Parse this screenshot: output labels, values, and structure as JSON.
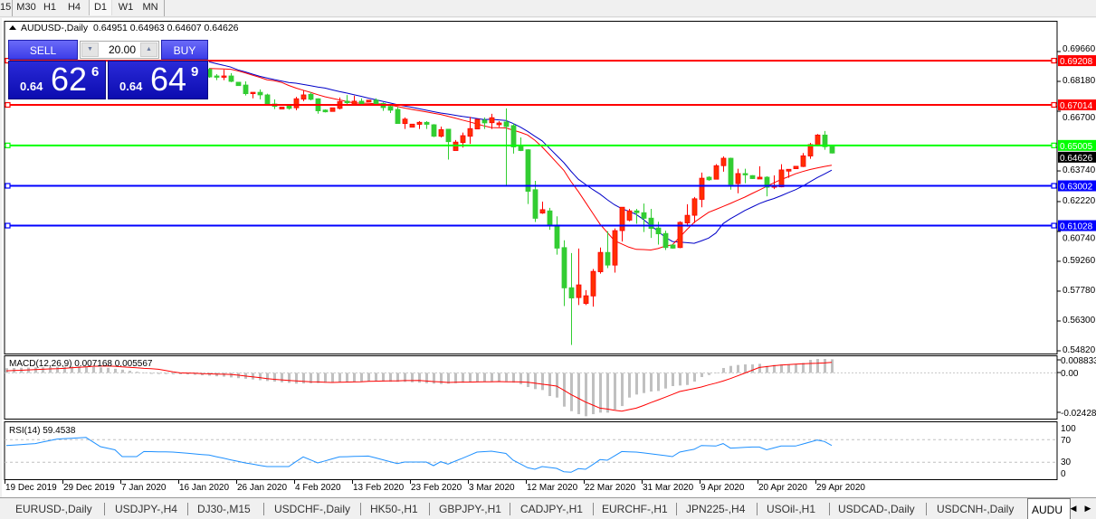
{
  "toolbar": {
    "timeframes": [
      "15",
      "M30",
      "H1",
      "H4",
      "D1",
      "W1",
      "MN"
    ],
    "active": "D1"
  },
  "chart": {
    "symbol_label": "AUDUSD-,Daily",
    "ohlc_text": "0.64951 0.64963 0.64607 0.64626",
    "colors": {
      "bull": "#ff3000",
      "bear": "#32cd32",
      "ma_fast": "#ff0000",
      "ma_slow": "#0000c8",
      "grid_text": "#000000"
    },
    "price_axis": [
      "0.69660",
      "0.68180",
      "0.66700",
      "0.63740",
      "0.62220",
      "0.60740",
      "0.59260",
      "0.57780",
      "0.56300",
      "0.54820"
    ],
    "price_range": [
      0.5482,
      0.6966
    ],
    "levels": [
      {
        "price": "0.69208",
        "color": "#ff0000"
      },
      {
        "price": "0.67014",
        "color": "#ff0000"
      },
      {
        "price": "0.65005",
        "color": "#00ff00"
      },
      {
        "price": "0.63002",
        "color": "#0000ff"
      },
      {
        "price": "0.61028",
        "color": "#0000ff"
      }
    ],
    "current_price": "0.64626",
    "candles": [
      [
        0.6878,
        0.6885,
        0.6836,
        0.684
      ],
      [
        0.6845,
        0.6854,
        0.6824,
        0.6839
      ],
      [
        0.684,
        0.6876,
        0.6824,
        0.6845
      ],
      [
        0.6845,
        0.6859,
        0.6814,
        0.6818
      ],
      [
        0.6814,
        0.6814,
        0.6796,
        0.6797
      ],
      [
        0.68,
        0.6818,
        0.6748,
        0.6757
      ],
      [
        0.6757,
        0.6764,
        0.6734,
        0.6764
      ],
      [
        0.6764,
        0.6778,
        0.6729,
        0.6751
      ],
      [
        0.6751,
        0.6757,
        0.6699,
        0.6702
      ],
      [
        0.6706,
        0.6729,
        0.6681,
        0.6694
      ],
      [
        0.6681,
        0.6691,
        0.6681,
        0.6691
      ],
      [
        0.6696,
        0.6705,
        0.6678,
        0.6684
      ],
      [
        0.6687,
        0.6741,
        0.6675,
        0.6732
      ],
      [
        0.673,
        0.6773,
        0.672,
        0.6751
      ],
      [
        0.6754,
        0.6764,
        0.6724,
        0.6729
      ],
      [
        0.6732,
        0.6734,
        0.6658,
        0.6672
      ],
      [
        0.6676,
        0.6679,
        0.6664,
        0.6667
      ],
      [
        0.6669,
        0.6687,
        0.6669,
        0.6687
      ],
      [
        0.6684,
        0.6738,
        0.6679,
        0.6718
      ],
      [
        0.672,
        0.675,
        0.6703,
        0.6712
      ],
      [
        0.6705,
        0.6747,
        0.6705,
        0.672
      ],
      [
        0.672,
        0.6734,
        0.6705,
        0.6705
      ],
      [
        0.6716,
        0.6726,
        0.6715,
        0.6725
      ],
      [
        0.6725,
        0.6734,
        0.6697,
        0.6705
      ],
      [
        0.6709,
        0.6714,
        0.6672,
        0.6688
      ],
      [
        0.6694,
        0.6706,
        0.6661,
        0.6675
      ],
      [
        0.6679,
        0.669,
        0.6609,
        0.6609
      ],
      [
        0.6609,
        0.6639,
        0.6582,
        0.6631
      ],
      [
        0.6591,
        0.6607,
        0.659,
        0.6606
      ],
      [
        0.6605,
        0.6621,
        0.6582,
        0.6615
      ],
      [
        0.6615,
        0.6621,
        0.6582,
        0.6605
      ],
      [
        0.6603,
        0.6606,
        0.6542,
        0.6546
      ],
      [
        0.6546,
        0.6594,
        0.654,
        0.6579
      ],
      [
        0.6581,
        0.6581,
        0.643,
        0.6519
      ],
      [
        0.6475,
        0.6527,
        0.6475,
        0.6517
      ],
      [
        0.6515,
        0.6564,
        0.649,
        0.6549
      ],
      [
        0.6546,
        0.6642,
        0.6508,
        0.6584
      ],
      [
        0.6582,
        0.6631,
        0.6581,
        0.663
      ],
      [
        0.6626,
        0.6639,
        0.6582,
        0.6612
      ],
      [
        0.6613,
        0.6657,
        0.6582,
        0.6638
      ],
      [
        0.6603,
        0.6621,
        0.6591,
        0.6612
      ],
      [
        0.6617,
        0.6684,
        0.6303,
        0.6594
      ],
      [
        0.6599,
        0.6609,
        0.646,
        0.6493
      ],
      [
        0.6496,
        0.654,
        0.6472,
        0.6475
      ],
      [
        0.6479,
        0.6482,
        0.621,
        0.6273
      ],
      [
        0.6281,
        0.6325,
        0.6121,
        0.6139
      ],
      [
        0.6165,
        0.6222,
        0.6161,
        0.6182
      ],
      [
        0.6176,
        0.6191,
        0.6082,
        0.6105
      ],
      [
        0.6106,
        0.6149,
        0.5959,
        0.5991
      ],
      [
        0.5994,
        0.603,
        0.5704,
        0.5794
      ],
      [
        0.5795,
        0.5967,
        0.5511,
        0.5744
      ],
      [
        0.5746,
        0.5989,
        0.5709,
        0.5809
      ],
      [
        0.5717,
        0.5783,
        0.5709,
        0.5755
      ],
      [
        0.5754,
        0.5888,
        0.5701,
        0.5876
      ],
      [
        0.5874,
        0.5994,
        0.5865,
        0.597
      ],
      [
        0.597,
        0.6075,
        0.5892,
        0.5907
      ],
      [
        0.5907,
        0.6089,
        0.587,
        0.6078
      ],
      [
        0.6078,
        0.6194,
        0.6024,
        0.6194
      ],
      [
        0.613,
        0.6186,
        0.6124,
        0.6176
      ],
      [
        0.6176,
        0.6186,
        0.6112,
        0.6167
      ],
      [
        0.6167,
        0.6212,
        0.6071,
        0.6139
      ],
      [
        0.614,
        0.6186,
        0.6042,
        0.6089
      ],
      [
        0.6091,
        0.6122,
        0.6009,
        0.6062
      ],
      [
        0.6064,
        0.6078,
        0.5982,
        0.5994
      ],
      [
        0.6007,
        0.601,
        0.5988,
        0.5991
      ],
      [
        0.5994,
        0.6124,
        0.5991,
        0.6119
      ],
      [
        0.6116,
        0.6209,
        0.6098,
        0.6154
      ],
      [
        0.6154,
        0.6245,
        0.6116,
        0.6236
      ],
      [
        0.6233,
        0.6366,
        0.6194,
        0.6338
      ],
      [
        0.6343,
        0.6348,
        0.6325,
        0.633
      ],
      [
        0.6333,
        0.6408,
        0.6333,
        0.64
      ],
      [
        0.64,
        0.6446,
        0.637,
        0.6437
      ],
      [
        0.6437,
        0.644,
        0.6281,
        0.6307
      ],
      [
        0.6311,
        0.6385,
        0.6263,
        0.6361
      ],
      [
        0.6361,
        0.6385,
        0.6313,
        0.6355
      ],
      [
        0.6351,
        0.6353,
        0.6334,
        0.6336
      ],
      [
        0.6334,
        0.6397,
        0.6334,
        0.6343
      ],
      [
        0.6343,
        0.6348,
        0.6248,
        0.6293
      ],
      [
        0.6293,
        0.6352,
        0.6284,
        0.6303
      ],
      [
        0.6295,
        0.6407,
        0.6293,
        0.6379
      ],
      [
        0.6373,
        0.6382,
        0.634,
        0.6382
      ],
      [
        0.6385,
        0.6398,
        0.6384,
        0.6397
      ],
      [
        0.6396,
        0.6463,
        0.6393,
        0.6449
      ],
      [
        0.6448,
        0.6513,
        0.6434,
        0.6505
      ],
      [
        0.6501,
        0.6557,
        0.6497,
        0.6552
      ],
      [
        0.6552,
        0.6572,
        0.6479,
        0.6494
      ],
      [
        0.64951,
        0.64963,
        0.64607,
        0.64626
      ]
    ],
    "ma_fast": [
      0.6882,
      0.6881,
      0.688,
      0.6878,
      0.687,
      0.686,
      0.6849,
      0.6838,
      0.6826,
      0.6821,
      0.6813,
      0.6798,
      0.6785,
      0.6774,
      0.6764,
      0.6752,
      0.6742,
      0.6734,
      0.6726,
      0.6719,
      0.6711,
      0.671,
      0.6709,
      0.6707,
      0.6706,
      0.6701,
      0.6694,
      0.6686,
      0.6679,
      0.6673,
      0.6667,
      0.666,
      0.6654,
      0.6645,
      0.6636,
      0.6626,
      0.6617,
      0.6607,
      0.6597,
      0.6589,
      0.6588,
      0.6587,
      0.6576,
      0.6565,
      0.6552,
      0.6526,
      0.6493,
      0.6455,
      0.6416,
      0.6377,
      0.6321,
      0.6272,
      0.6218,
      0.6164,
      0.611,
      0.6069,
      0.6028,
      0.6012,
      0.5996,
      0.5985,
      0.5984,
      0.5982,
      0.5989,
      0.6001,
      0.6008,
      0.6045,
      0.6083,
      0.6119,
      0.6144,
      0.6169,
      0.6183,
      0.6198,
      0.6213,
      0.6229,
      0.6244,
      0.6262,
      0.6279,
      0.6297,
      0.6315,
      0.6331,
      0.6345,
      0.636,
      0.6371,
      0.6381,
      0.6389,
      0.6396,
      0.6402
    ],
    "ma_slow": [
      0.6915,
      0.6906,
      0.6898,
      0.6889,
      0.6875,
      0.6865,
      0.6854,
      0.6843,
      0.6835,
      0.6827,
      0.682,
      0.6812,
      0.6809,
      0.6803,
      0.6797,
      0.679,
      0.6785,
      0.6776,
      0.6768,
      0.676,
      0.6752,
      0.6744,
      0.6735,
      0.6727,
      0.6719,
      0.6711,
      0.6703,
      0.6696,
      0.669,
      0.6682,
      0.6675,
      0.6668,
      0.6661,
      0.6656,
      0.665,
      0.6644,
      0.6639,
      0.6634,
      0.6629,
      0.663,
      0.6627,
      0.6624,
      0.6609,
      0.6591,
      0.657,
      0.6546,
      0.6523,
      0.6487,
      0.6451,
      0.6415,
      0.6372,
      0.6333,
      0.6307,
      0.6282,
      0.6259,
      0.6231,
      0.6206,
      0.6187,
      0.6174,
      0.6158,
      0.6133,
      0.6104,
      0.6075,
      0.6045,
      0.6024,
      0.6021,
      0.6018,
      0.6015,
      0.6027,
      0.6041,
      0.6066,
      0.6113,
      0.6137,
      0.6157,
      0.6178,
      0.6195,
      0.6212,
      0.6226,
      0.6237,
      0.6251,
      0.6266,
      0.6281,
      0.6299,
      0.632,
      0.6341,
      0.6359,
      0.6378
    ]
  },
  "trade_panel": {
    "sell_label": "SELL",
    "buy_label": "BUY",
    "lot": "20.00",
    "sell": {
      "prefix": "0.64",
      "big": "62",
      "sup": "6"
    },
    "buy": {
      "prefix": "0.64",
      "big": "64",
      "sup": "9"
    }
  },
  "macd": {
    "label": "MACD(12,26,9) 0.007168 0.005567",
    "axis": [
      "0.008833",
      "0.00",
      "-0.024281"
    ],
    "range": [
      -0.024281,
      0.008833
    ],
    "main": [
      0.0025,
      0.0026,
      0.0027,
      0.0028,
      0.0029,
      0.003,
      0.0031,
      0.0032,
      0.0033,
      0.0034,
      0.0035,
      0.0033,
      0.0031,
      0.0029,
      0.0027,
      0.0022,
      0.0017,
      0.0011,
      0.0006,
      0.0,
      -0.0005,
      -0.0006,
      -0.0006,
      -0.0007,
      -0.0007,
      -0.0008,
      -0.001,
      -0.0013,
      -0.0015,
      -0.0018,
      -0.002,
      -0.0024,
      -0.0028,
      -0.0031,
      -0.0035,
      -0.0039,
      -0.0043,
      -0.0046,
      -0.005,
      -0.0053,
      -0.0057,
      -0.0056,
      -0.0055,
      -0.0054,
      -0.0052,
      -0.0051,
      -0.005,
      -0.0049,
      -0.0047,
      -0.0046,
      -0.0045,
      -0.0046,
      -0.0046,
      -0.0047,
      -0.0047,
      -0.0048,
      -0.005,
      -0.0052,
      -0.0055,
      -0.0057,
      -0.0059,
      -0.0057,
      -0.0055,
      -0.0052,
      -0.005,
      -0.0048,
      -0.0047,
      -0.0046,
      -0.0046,
      -0.0045,
      -0.0052,
      -0.006,
      -0.0075,
      -0.0086,
      -0.0091,
      -0.0123,
      -0.0131,
      -0.0179,
      -0.0203,
      -0.0219,
      -0.023,
      -0.0219,
      -0.0211,
      -0.0211,
      -0.0195,
      -0.0176,
      -0.0131,
      -0.0115,
      -0.0107,
      -0.0099,
      -0.0096,
      -0.0083,
      -0.007,
      -0.0067,
      -0.0064,
      -0.0046,
      -0.0022,
      -0.0011,
      0.0,
      0.0026,
      0.0037,
      0.0042,
      0.0045,
      0.0045,
      0.0048,
      0.0037,
      0.0042,
      0.0045,
      0.0045,
      0.0045,
      0.0053,
      0.0069,
      0.0074,
      0.0074,
      0.0072
    ],
    "signal": [
      0.0011,
      0.0013,
      0.0014,
      0.0016,
      0.0018,
      0.0019,
      0.0021,
      0.0022,
      0.0024,
      0.0027,
      0.003,
      0.0032,
      0.0035,
      0.0036,
      0.0037,
      0.0035,
      0.0032,
      0.003,
      0.0027,
      0.0024,
      0.0022,
      0.0019,
      0.0013,
      0.0006,
      0.0,
      -0.0001,
      -0.0002,
      -0.0004,
      -0.0005,
      -0.0006,
      -0.0007,
      -0.0008,
      -0.0012,
      -0.0017,
      -0.0021,
      -0.0025,
      -0.003,
      -0.0034,
      -0.0037,
      -0.004,
      -0.0042,
      -0.0045,
      -0.0047,
      -0.0048,
      -0.005,
      -0.0051,
      -0.005,
      -0.0049,
      -0.0048,
      -0.0047,
      -0.0045,
      -0.0044,
      -0.0043,
      -0.0042,
      -0.0042,
      -0.0041,
      -0.0041,
      -0.004,
      -0.0043,
      -0.0046,
      -0.0048,
      -0.0051,
      -0.005,
      -0.0049,
      -0.0049,
      -0.0048,
      -0.0047,
      -0.0047,
      -0.0046,
      -0.0047,
      -0.0047,
      -0.0048,
      -0.005,
      -0.0054,
      -0.006,
      -0.0065,
      -0.007,
      -0.0092,
      -0.0115,
      -0.0135,
      -0.0155,
      -0.0171,
      -0.0187,
      -0.0192,
      -0.0198,
      -0.0203,
      -0.0195,
      -0.0187,
      -0.0173,
      -0.0158,
      -0.0144,
      -0.0129,
      -0.0114,
      -0.0099,
      -0.0091,
      -0.0083,
      -0.0075,
      -0.0064,
      -0.0054,
      -0.0043,
      -0.003,
      -0.0016,
      -0.0001,
      0.0014,
      0.0029,
      0.0033,
      0.0038,
      0.0042,
      0.0044,
      0.0046,
      0.0048,
      0.005,
      0.0051,
      0.0053,
      0.0056
    ],
    "colors": {
      "histogram": "#c0c0c0",
      "signal": "#ff0000"
    }
  },
  "rsi": {
    "label": "RSI(14) 59.4538",
    "axis": [
      "100",
      "70",
      "30",
      "0"
    ],
    "levels": [
      70,
      30
    ],
    "values": [
      59.7,
      60.5,
      61.3,
      62.2,
      63,
      65.7,
      68.3,
      71,
      71.8,
      72.5,
      73.3,
      74,
      65.8,
      57.6,
      54.8,
      52,
      40,
      40,
      40,
      49,
      48.8,
      48.5,
      48.3,
      48,
      47,
      45.9,
      44.8,
      43.7,
      42.7,
      39.9,
      37.1,
      34.3,
      31.5,
      28.8,
      26.7,
      24.5,
      22.4,
      22.4,
      22.4,
      22.4,
      31,
      39.5,
      34.2,
      28.8,
      32.4,
      36,
      39.5,
      39.9,
      40.3,
      40.6,
      41,
      37.7,
      34.4,
      31,
      27.7,
      30.4,
      30.4,
      30.4,
      30.4,
      24,
      31,
      26.7,
      32,
      37.2,
      42.6,
      48,
      48.8,
      49.6,
      47.6,
      45.6,
      33.6,
      27,
      20.3,
      17.6,
      22.4,
      20.8,
      19.2,
      13.3,
      12.3,
      18.7,
      17.6,
      26,
      34.7,
      33.6,
      41.3,
      49,
      48.5,
      48,
      46.5,
      45,
      43.3,
      41.7,
      40,
      48,
      50.5,
      53,
      59.7,
      59.2,
      58.7,
      63,
      55,
      55.7,
      56.3,
      57,
      57,
      52,
      55.3,
      58.7,
      58.7,
      58.7,
      62.2,
      65.8,
      69.3,
      66.7,
      59.7
    ],
    "color": "#1e90ff"
  },
  "time_axis": [
    "19 Dec 2019",
    "29 Dec 2019",
    "7 Jan 2020",
    "16 Jan 2020",
    "26 Jan 2020",
    "4 Feb 2020",
    "13 Feb 2020",
    "23 Feb 2020",
    "3 Mar 2020",
    "12 Mar 2020",
    "22 Mar 2020",
    "31 Mar 2020",
    "9 Apr 2020",
    "20 Apr 2020",
    "29 Apr 2020"
  ],
  "tabs": {
    "items": [
      "EURUSD-,Daily",
      "USDJPY-,H4",
      "DJ30-,M15",
      "USDCHF-,Daily",
      "HK50-,H1",
      "GBPJPY-,H1",
      "CADJPY-,H1",
      "EURCHF-,H1",
      "JPN225-,H4",
      "USOil-,H1",
      "USDCAD-,Daily",
      "USDCNH-,Daily"
    ],
    "active": "AUDU",
    "scroll_left": "◀",
    "scroll_right": "▶"
  }
}
